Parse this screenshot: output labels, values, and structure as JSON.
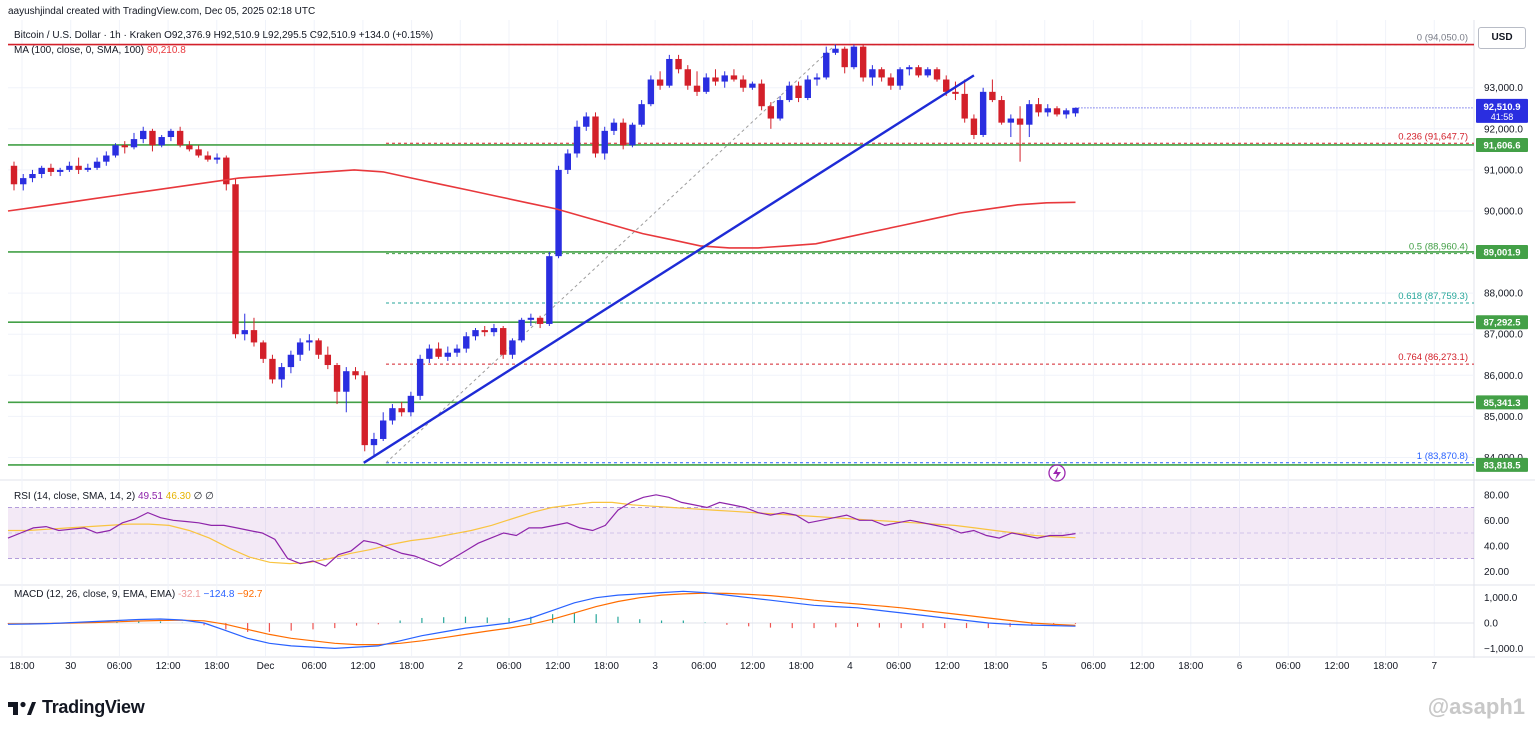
{
  "credit": "aayushjindal created with TradingView.com, Dec 05, 2025 02:18 UTC",
  "symbol": {
    "title": "Bitcoin / U.S. Dollar · 1h · Kraken",
    "open": "O92,376.9",
    "high": "H92,510.9",
    "low": "L92,295.5",
    "close": "C92,510.9",
    "change": "+134.0 (+0.15%)"
  },
  "ma_legend": {
    "label": "MA (100, close, 0, SMA, 100)",
    "value": "90,210.8"
  },
  "rsi_legend": {
    "label": "RSI (14, close, SMA, 14, 2)",
    "v1": "49.51",
    "v2": "46.30",
    "v3": "∅ ∅"
  },
  "macd_legend": {
    "label": "MACD (12, 26, close, 9, EMA, EMA)",
    "v1": "-32.1",
    "v2": "−124.8",
    "v3": "−92.7"
  },
  "currency": "USD",
  "brand": "TradingView",
  "watermark": "@asaph1",
  "colors": {
    "up": "#2a2ee0",
    "down": "#d3202a",
    "ma": "#e8383c",
    "support": "#43a047",
    "fib": "#d3202a",
    "trend": "#1e2bd6",
    "rsi": "#8e24aa",
    "rsi_ma": "#f9c440",
    "macd": "#2962ff",
    "signal": "#ff6d00"
  },
  "chart_data": {
    "type": "candlestick",
    "symbol": "BTC/USD",
    "interval": "1h",
    "price_ylim": [
      83500,
      94600
    ],
    "price_ticks": [
      84000,
      85000,
      86000,
      87000,
      88000,
      89000,
      90000,
      91000,
      92000,
      93000
    ],
    "price_tick_labels": [
      "84,000.0",
      "85,000.0",
      "86,000.0",
      "87,000.0",
      "88,000.0",
      "89,000.0",
      "90,000.0",
      "91,000.0",
      "92,000.0",
      "93,000.0"
    ],
    "x_tick_labels": [
      "18:00",
      "30",
      "06:00",
      "12:00",
      "18:00",
      "Dec",
      "06:00",
      "12:00",
      "18:00",
      "2",
      "06:00",
      "12:00",
      "18:00",
      "3",
      "06:00",
      "12:00",
      "18:00",
      "4",
      "06:00",
      "12:00",
      "18:00",
      "5",
      "06:00",
      "12:00",
      "18:00",
      "6",
      "06:00",
      "12:00",
      "18:00",
      "7"
    ],
    "candles": [
      [
        91100,
        91200,
        90500,
        90650
      ],
      [
        90650,
        90900,
        90500,
        90800
      ],
      [
        90800,
        91000,
        90700,
        90900
      ],
      [
        90900,
        91100,
        90800,
        91050
      ],
      [
        91050,
        91150,
        90850,
        90950
      ],
      [
        90950,
        91050,
        90850,
        91000
      ],
      [
        91000,
        91200,
        90950,
        91100
      ],
      [
        91100,
        91300,
        90900,
        91000
      ],
      [
        91000,
        91150,
        90950,
        91050
      ],
      [
        91050,
        91300,
        91000,
        91200
      ],
      [
        91200,
        91450,
        91100,
        91350
      ],
      [
        91350,
        91650,
        91300,
        91600
      ],
      [
        91600,
        91700,
        91400,
        91550
      ],
      [
        91550,
        91900,
        91500,
        91750
      ],
      [
        91750,
        92050,
        91650,
        91950
      ],
      [
        91950,
        92000,
        91450,
        91600
      ],
      [
        91600,
        91850,
        91550,
        91800
      ],
      [
        91800,
        92000,
        91700,
        91950
      ],
      [
        91950,
        92050,
        91550,
        91600
      ],
      [
        91600,
        91700,
        91450,
        91500
      ],
      [
        91500,
        91600,
        91300,
        91350
      ],
      [
        91350,
        91450,
        91200,
        91250
      ],
      [
        91250,
        91400,
        91150,
        91300
      ],
      [
        91300,
        91350,
        90500,
        90650
      ],
      [
        90650,
        90800,
        86900,
        87000
      ],
      [
        87000,
        87500,
        86850,
        87100
      ],
      [
        87100,
        87400,
        86700,
        86800
      ],
      [
        86800,
        86850,
        86300,
        86400
      ],
      [
        86400,
        86500,
        85800,
        85900
      ],
      [
        85900,
        86300,
        85700,
        86200
      ],
      [
        86200,
        86600,
        86050,
        86500
      ],
      [
        86500,
        86900,
        86350,
        86800
      ],
      [
        86800,
        87000,
        86600,
        86850
      ],
      [
        86850,
        86900,
        86400,
        86500
      ],
      [
        86500,
        86700,
        86150,
        86250
      ],
      [
        86250,
        86300,
        85300,
        85600
      ],
      [
        85600,
        86200,
        85100,
        86100
      ],
      [
        86100,
        86200,
        85900,
        86000
      ],
      [
        86000,
        86100,
        84150,
        84300
      ],
      [
        84300,
        84600,
        84000,
        84450
      ],
      [
        84450,
        85100,
        84400,
        84900
      ],
      [
        84900,
        85300,
        84800,
        85200
      ],
      [
        85200,
        85350,
        85000,
        85100
      ],
      [
        85100,
        85600,
        85000,
        85500
      ],
      [
        85500,
        86500,
        85400,
        86400
      ],
      [
        86400,
        86750,
        86300,
        86650
      ],
      [
        86650,
        86800,
        86400,
        86450
      ],
      [
        86450,
        86700,
        86350,
        86550
      ],
      [
        86550,
        86750,
        86450,
        86650
      ],
      [
        86650,
        87050,
        86550,
        86950
      ],
      [
        86950,
        87150,
        86850,
        87100
      ],
      [
        87100,
        87200,
        86950,
        87050
      ],
      [
        87050,
        87250,
        86950,
        87150
      ],
      [
        87150,
        87200,
        86400,
        86500
      ],
      [
        86500,
        86900,
        86400,
        86850
      ],
      [
        86850,
        87400,
        86800,
        87350
      ],
      [
        87350,
        87500,
        87200,
        87400
      ],
      [
        87400,
        87450,
        87150,
        87250
      ],
      [
        87250,
        89000,
        87200,
        88900
      ],
      [
        88900,
        91100,
        88850,
        91000
      ],
      [
        91000,
        91500,
        90900,
        91400
      ],
      [
        91400,
        92200,
        91300,
        92050
      ],
      [
        92050,
        92400,
        91950,
        92300
      ],
      [
        92300,
        92400,
        91300,
        91400
      ],
      [
        91400,
        92050,
        91250,
        91950
      ],
      [
        91950,
        92250,
        91850,
        92150
      ],
      [
        92150,
        92250,
        91500,
        91600
      ],
      [
        91600,
        92150,
        91550,
        92100
      ],
      [
        92100,
        92700,
        92050,
        92600
      ],
      [
        92600,
        93300,
        92550,
        93200
      ],
      [
        93200,
        93400,
        92950,
        93050
      ],
      [
        93050,
        93800,
        93000,
        93700
      ],
      [
        93700,
        93800,
        93350,
        93450
      ],
      [
        93450,
        93550,
        92950,
        93050
      ],
      [
        93050,
        93400,
        92800,
        92900
      ],
      [
        92900,
        93350,
        92850,
        93250
      ],
      [
        93250,
        93450,
        93050,
        93150
      ],
      [
        93150,
        93400,
        93000,
        93300
      ],
      [
        93300,
        93450,
        93150,
        93200
      ],
      [
        93200,
        93300,
        92900,
        93000
      ],
      [
        93000,
        93150,
        92950,
        93100
      ],
      [
        93100,
        93200,
        92450,
        92550
      ],
      [
        92550,
        92650,
        92000,
        92250
      ],
      [
        92250,
        92800,
        92200,
        92700
      ],
      [
        92700,
        93150,
        92650,
        93050
      ],
      [
        93050,
        93150,
        92650,
        92750
      ],
      [
        92750,
        93300,
        92700,
        93200
      ],
      [
        93200,
        93350,
        93050,
        93250
      ],
      [
        93250,
        94000,
        93200,
        93850
      ],
      [
        93850,
        94050,
        93800,
        93950
      ],
      [
        93950,
        94000,
        93350,
        93500
      ],
      [
        93500,
        94050,
        93450,
        94000
      ],
      [
        94000,
        94050,
        93150,
        93250
      ],
      [
        93250,
        93550,
        93050,
        93450
      ],
      [
        93450,
        93500,
        93150,
        93250
      ],
      [
        93250,
        93350,
        92950,
        93050
      ],
      [
        93050,
        93500,
        92950,
        93450
      ],
      [
        93450,
        93550,
        93300,
        93500
      ],
      [
        93500,
        93550,
        93250,
        93300
      ],
      [
        93300,
        93500,
        93250,
        93450
      ],
      [
        93450,
        93500,
        93150,
        93200
      ],
      [
        93200,
        93300,
        92800,
        92900
      ],
      [
        92900,
        93150,
        92700,
        92850
      ],
      [
        92850,
        93200,
        92150,
        92250
      ],
      [
        92250,
        92350,
        91750,
        91850
      ],
      [
        91850,
        93000,
        91800,
        92900
      ],
      [
        92900,
        93200,
        92650,
        92700
      ],
      [
        92700,
        92800,
        92100,
        92150
      ],
      [
        92150,
        92350,
        91800,
        92250
      ],
      [
        92250,
        92550,
        91200,
        92100
      ],
      [
        92100,
        92700,
        91800,
        92600
      ],
      [
        92600,
        92750,
        92300,
        92400
      ],
      [
        92400,
        92600,
        92300,
        92500
      ],
      [
        92500,
        92550,
        92300,
        92350
      ],
      [
        92350,
        92500,
        92250,
        92450
      ],
      [
        92376.9,
        92510.9,
        92295.5,
        92510.9
      ]
    ],
    "ma100": [
      90000,
      90100,
      90200,
      90300,
      90400,
      90500,
      90600,
      90700,
      90800,
      90850,
      90900,
      90950,
      91000,
      90950,
      90800,
      90650,
      90500,
      90350,
      90200,
      90050,
      89850,
      89650,
      89450,
      89300,
      89150,
      89100,
      89100,
      89150,
      89200,
      89350,
      89500,
      89650,
      89800,
      89950,
      90050,
      90150,
      90200,
      90210.8
    ],
    "ma100_label": "90,210.8",
    "levels": [
      {
        "kind": "support",
        "price": 91606.6,
        "label": "91,606.6"
      },
      {
        "kind": "support",
        "price": 89001.9,
        "label": "89,001.9"
      },
      {
        "kind": "support",
        "price": 87292.5,
        "label": "87,292.5"
      },
      {
        "kind": "support",
        "price": 85341.3,
        "label": "85,341.3"
      },
      {
        "kind": "support",
        "price": 83818.5,
        "label": "83,818.5"
      },
      {
        "kind": "resistance",
        "price": 94050.0,
        "label": ""
      }
    ],
    "fib": [
      {
        "ratio": "0",
        "price": 94050.0,
        "label": "0 (94,050.0)",
        "color": "#787b86"
      },
      {
        "ratio": "0.236",
        "price": 91647.7,
        "label": "0.236 (91,647.7)",
        "color": "#d3202a"
      },
      {
        "ratio": "0.5",
        "price": 88960.4,
        "label": "0.5 (88,960.4)",
        "color": "#43a047"
      },
      {
        "ratio": "0.618",
        "price": 87759.3,
        "label": "0.618 (87,759.3)",
        "color": "#26a69a"
      },
      {
        "ratio": "0.764",
        "price": 86273.1,
        "label": "0.764 (86,273.1)",
        "color": "#d3202a"
      },
      {
        "ratio": "1",
        "price": 83870.8,
        "label": "1 (83,870.8)",
        "color": "#2962ff"
      }
    ],
    "last_price": {
      "price": 92510.9,
      "label": "92,510.9",
      "countdown": "41:58"
    },
    "trendline": {
      "from_candle": 38,
      "from_price": 83870,
      "to_candle": 104,
      "to_price": 93300
    },
    "rsi": {
      "ylim": [
        10,
        90
      ],
      "ticks": [
        20,
        40,
        60,
        80
      ],
      "tick_labels": [
        "20.00",
        "40.00",
        "60.00",
        "80.00"
      ],
      "band": [
        30,
        70
      ],
      "values": [
        46,
        50,
        54,
        55,
        52,
        53,
        54,
        50,
        52,
        58,
        61,
        66,
        62,
        60,
        59,
        58,
        56,
        56,
        54,
        52,
        50,
        45,
        30,
        26,
        28,
        24,
        33,
        36,
        44,
        42,
        38,
        34,
        32,
        28,
        24,
        30,
        36,
        42,
        46,
        50,
        48,
        54,
        54,
        56,
        58,
        54,
        52,
        56,
        68,
        74,
        78,
        80,
        78,
        74,
        72,
        70,
        74,
        72,
        70,
        66,
        64,
        66,
        64,
        58,
        60,
        62,
        64,
        60,
        60,
        56,
        58,
        60,
        58,
        56,
        54,
        50,
        52,
        48,
        46,
        50,
        48,
        46,
        48,
        48,
        49.51
      ],
      "ma_values": [
        52,
        52,
        53,
        54,
        55,
        56,
        57,
        57,
        56,
        52,
        46,
        38,
        31,
        27,
        26,
        27,
        30,
        34,
        37,
        41,
        44,
        46,
        49,
        52,
        56,
        61,
        66,
        70,
        72,
        74,
        74,
        72,
        71,
        70,
        69,
        68,
        67,
        66,
        65,
        64,
        63,
        62,
        61,
        60,
        59,
        58,
        57,
        56,
        54,
        52,
        50,
        48,
        47,
        46.3
      ]
    },
    "macd": {
      "ylim": [
        -1300,
        1500
      ],
      "ticks": [
        -1000,
        0,
        1000
      ],
      "tick_labels": [
        "−1,000.0",
        "0.0",
        "1,000.0"
      ],
      "macd": [
        -50,
        -40,
        -20,
        20,
        60,
        100,
        140,
        160,
        120,
        0,
        -300,
        -600,
        -800,
        -900,
        -950,
        -1000,
        -950,
        -900,
        -700,
        -500,
        -350,
        -200,
        -100,
        0,
        200,
        500,
        800,
        1000,
        1100,
        1150,
        1200,
        1250,
        1200,
        1100,
        1000,
        900,
        800,
        700,
        650,
        600,
        500,
        400,
        300,
        200,
        100,
        0,
        -50,
        -80,
        -100,
        -124.8
      ],
      "signal": [
        -30,
        -25,
        -15,
        0,
        20,
        50,
        80,
        100,
        110,
        90,
        -50,
        -250,
        -450,
        -600,
        -700,
        -800,
        -850,
        -850,
        -800,
        -700,
        -580,
        -450,
        -320,
        -200,
        -50,
        150,
        400,
        650,
        850,
        1000,
        1100,
        1150,
        1180,
        1170,
        1130,
        1080,
        1000,
        900,
        820,
        750,
        680,
        600,
        500,
        400,
        300,
        200,
        100,
        0,
        -50,
        -92.7
      ]
    }
  }
}
